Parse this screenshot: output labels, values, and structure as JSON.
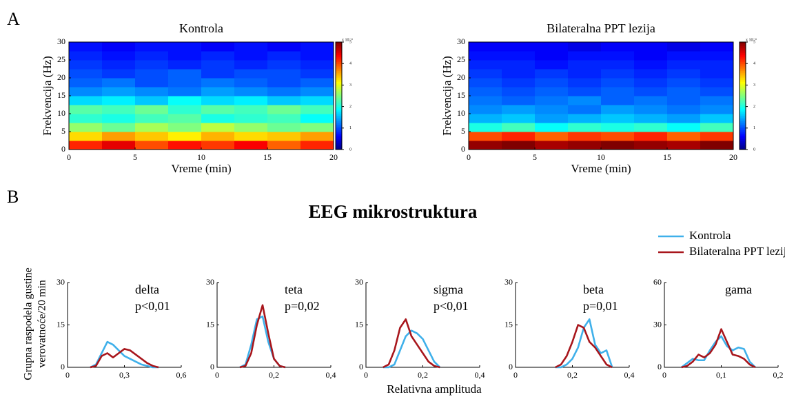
{
  "figure": {
    "panel_labels": [
      "A",
      "B"
    ],
    "title": "EEG mikrostruktura",
    "ylabel": [
      "Grupna raspodela gustine",
      "verovatnoće/20 min"
    ],
    "xlabel": "Relativna amplituda"
  },
  "chart_data": [
    {
      "type": "heatmap",
      "title": "Kontrola",
      "xlabel": "Vreme (min)",
      "ylabel": "Frekvencija (Hz)",
      "colormap": "jet",
      "xlim": [
        0,
        20
      ],
      "xticks": [
        0,
        5,
        10,
        15,
        20
      ],
      "ylim": [
        0,
        30
      ],
      "yticks": [
        0,
        5,
        10,
        15,
        20,
        25,
        30
      ],
      "zlim": [
        0,
        5
      ],
      "zticks": [
        0,
        1,
        2,
        3,
        4,
        5
      ],
      "zlabel": "x 10⁻⁴",
      "xbins": [
        0,
        2.5,
        5,
        7.5,
        10,
        12.5,
        15,
        17.5,
        20
      ],
      "ybins": [
        0,
        2.5,
        5,
        7.5,
        10,
        12.5,
        15,
        17.5,
        20,
        22.5,
        25,
        27.5,
        30
      ],
      "z": [
        [
          4.2,
          4.5,
          4.0,
          4.3,
          4.1,
          4.4,
          3.9,
          4.2
        ],
        [
          3.3,
          3.6,
          3.4,
          3.2,
          3.5,
          3.3,
          3.4,
          3.6
        ],
        [
          2.6,
          2.4,
          2.7,
          2.5,
          2.8,
          2.6,
          2.4,
          2.5
        ],
        [
          2.1,
          2.0,
          2.2,
          2.3,
          2.0,
          2.1,
          2.2,
          1.9
        ],
        [
          2.3,
          2.2,
          2.4,
          2.1,
          2.3,
          2.2,
          2.4,
          2.2
        ],
        [
          1.7,
          1.8,
          1.6,
          1.9,
          1.7,
          1.8,
          1.6,
          1.7
        ],
        [
          1.3,
          1.4,
          1.3,
          1.2,
          1.4,
          1.3,
          1.2,
          1.3
        ],
        [
          1.1,
          1.2,
          1.0,
          1.1,
          1.2,
          1.1,
          1.0,
          1.1
        ],
        [
          1.0,
          0.9,
          1.0,
          1.1,
          0.9,
          1.0,
          1.0,
          0.9
        ],
        [
          0.9,
          0.8,
          0.9,
          0.8,
          0.9,
          0.8,
          0.9,
          0.8
        ],
        [
          0.8,
          0.7,
          0.8,
          0.7,
          0.8,
          0.7,
          0.8,
          0.7
        ],
        [
          0.7,
          0.6,
          0.7,
          0.7,
          0.6,
          0.7,
          0.6,
          0.7
        ]
      ]
    },
    {
      "type": "heatmap",
      "title": "Bilateralna PPT lezija",
      "xlabel": "Vreme (min)",
      "ylabel": "Frekvencija (Hz)",
      "colormap": "jet",
      "xlim": [
        0,
        20
      ],
      "xticks": [
        0,
        5,
        10,
        15,
        20
      ],
      "ylim": [
        0,
        30
      ],
      "yticks": [
        0,
        5,
        10,
        15,
        20,
        25,
        30
      ],
      "zlim": [
        0,
        5
      ],
      "zticks": [
        0,
        1,
        2,
        3,
        4,
        5
      ],
      "zlabel": "x 10⁻⁴",
      "xbins": [
        0,
        2.5,
        5,
        7.5,
        10,
        12.5,
        15,
        17.5,
        20
      ],
      "ybins": [
        0,
        2.5,
        5,
        7.5,
        10,
        12.5,
        15,
        17.5,
        20,
        22.5,
        25,
        27.5,
        30
      ],
      "z": [
        [
          4.9,
          5.0,
          4.8,
          4.9,
          5.0,
          4.9,
          4.8,
          5.0
        ],
        [
          4.0,
          4.2,
          3.9,
          4.1,
          4.0,
          4.2,
          3.9,
          4.1
        ],
        [
          2.0,
          2.2,
          1.9,
          2.1,
          2.0,
          2.1,
          1.9,
          2.2
        ],
        [
          1.5,
          1.6,
          1.4,
          1.5,
          1.6,
          1.5,
          1.4,
          1.6
        ],
        [
          1.3,
          1.4,
          1.3,
          1.2,
          1.4,
          1.3,
          1.2,
          1.3
        ],
        [
          1.2,
          1.1,
          1.2,
          1.3,
          1.1,
          1.2,
          1.1,
          1.2
        ],
        [
          1.1,
          1.0,
          1.1,
          1.0,
          1.1,
          1.0,
          1.1,
          1.0
        ],
        [
          1.0,
          0.9,
          1.0,
          0.9,
          1.0,
          0.9,
          1.0,
          0.9
        ],
        [
          0.9,
          0.8,
          0.9,
          0.8,
          0.9,
          0.8,
          0.9,
          0.8
        ],
        [
          0.8,
          0.8,
          0.7,
          0.8,
          0.8,
          0.7,
          0.8,
          0.8
        ],
        [
          0.7,
          0.7,
          0.6,
          0.7,
          0.7,
          0.6,
          0.7,
          0.7
        ],
        [
          0.6,
          0.6,
          0.6,
          0.5,
          0.6,
          0.6,
          0.5,
          0.6
        ]
      ]
    },
    {
      "type": "line",
      "title": "delta",
      "annotation": "p<0,01",
      "xlim": [
        0,
        0.6
      ],
      "xticks": [
        0,
        {
          "value": 0.3,
          "label": "0,3"
        },
        {
          "value": 0.6,
          "label": "0,6"
        }
      ],
      "ylim": [
        0,
        30
      ],
      "yticks": [
        0,
        15,
        30
      ],
      "x": [
        0.12,
        0.15,
        0.18,
        0.21,
        0.24,
        0.27,
        0.3,
        0.33,
        0.36,
        0.39,
        0.42,
        0.45,
        0.48
      ],
      "series": [
        {
          "name": "Kontrola",
          "color": "#3fb0ea",
          "values": [
            0,
            1,
            5,
            9,
            8,
            6,
            4,
            3,
            2,
            1,
            0.5,
            0,
            0
          ]
        },
        {
          "name": "Bilateralna PPT lezija",
          "color": "#a8161c",
          "values": [
            0,
            0.5,
            4,
            5,
            3.5,
            5,
            6.5,
            6,
            4.5,
            3,
            1.5,
            0.5,
            0
          ]
        }
      ]
    },
    {
      "type": "line",
      "title": "teta",
      "annotation": "p=0,02",
      "xlim": [
        0,
        0.4
      ],
      "xticks": [
        0,
        {
          "value": 0.2,
          "label": "0,2"
        },
        {
          "value": 0.4,
          "label": "0,4"
        }
      ],
      "ylim": [
        0,
        30
      ],
      "yticks": [
        0,
        15,
        30
      ],
      "x": [
        0.08,
        0.1,
        0.12,
        0.14,
        0.16,
        0.18,
        0.2,
        0.22,
        0.24
      ],
      "series": [
        {
          "color": "#3fb0ea",
          "values": [
            0,
            1,
            8,
            17,
            18,
            9,
            3,
            0.5,
            0
          ]
        },
        {
          "color": "#a8161c",
          "values": [
            0,
            0.5,
            5,
            15,
            22,
            12,
            3,
            0.5,
            0
          ]
        }
      ]
    },
    {
      "type": "line",
      "title": "sigma",
      "annotation": "p<0,01",
      "xlim": [
        0,
        0.4
      ],
      "xticks": [
        0,
        {
          "value": 0.2,
          "label": "0,2"
        },
        {
          "value": 0.4,
          "label": "0,4"
        }
      ],
      "ylim": [
        0,
        30
      ],
      "yticks": [
        0,
        15,
        30
      ],
      "x": [
        0.06,
        0.08,
        0.1,
        0.12,
        0.14,
        0.16,
        0.18,
        0.2,
        0.22,
        0.24,
        0.26
      ],
      "series": [
        {
          "color": "#3fb0ea",
          "values": [
            0,
            0,
            1,
            6,
            11,
            13,
            12,
            10,
            6,
            2,
            0
          ]
        },
        {
          "color": "#a8161c",
          "values": [
            0,
            1,
            6,
            14,
            17,
            11,
            8,
            5,
            2,
            0.5,
            0
          ]
        }
      ]
    },
    {
      "type": "line",
      "title": "beta",
      "annotation": "p=0,01",
      "xlim": [
        0,
        0.4
      ],
      "xticks": [
        0,
        {
          "value": 0.2,
          "label": "0,2"
        },
        {
          "value": 0.4,
          "label": "0,4"
        }
      ],
      "ylim": [
        0,
        30
      ],
      "yticks": [
        0,
        15,
        30
      ],
      "x": [
        0.14,
        0.16,
        0.18,
        0.2,
        0.22,
        0.24,
        0.26,
        0.28,
        0.3,
        0.32,
        0.34
      ],
      "series": [
        {
          "color": "#3fb0ea",
          "values": [
            0,
            0,
            1,
            3,
            7,
            14,
            17,
            8,
            5,
            6,
            0
          ]
        },
        {
          "color": "#a8161c",
          "values": [
            0,
            1,
            4,
            9,
            15,
            14,
            9,
            7,
            4,
            1,
            0
          ]
        }
      ]
    },
    {
      "type": "line",
      "title": "gama",
      "xlim": [
        0,
        0.2
      ],
      "xticks": [
        0,
        {
          "value": 0.1,
          "label": "0,1"
        },
        {
          "value": 0.2,
          "label": "0,2"
        }
      ],
      "ylim": [
        0,
        60
      ],
      "yticks": [
        0,
        30,
        60
      ],
      "x": [
        0.03,
        0.04,
        0.05,
        0.06,
        0.07,
        0.08,
        0.09,
        0.1,
        0.11,
        0.12,
        0.13,
        0.14,
        0.15,
        0.16
      ],
      "series": [
        {
          "color": "#3fb0ea",
          "values": [
            0,
            3,
            6,
            5,
            5,
            12,
            18,
            22,
            15,
            12,
            14,
            13,
            4,
            0
          ]
        },
        {
          "color": "#a8161c",
          "values": [
            0,
            1,
            4,
            9,
            7,
            10,
            16,
            27,
            18,
            9,
            8,
            6,
            2,
            0
          ]
        }
      ]
    }
  ]
}
